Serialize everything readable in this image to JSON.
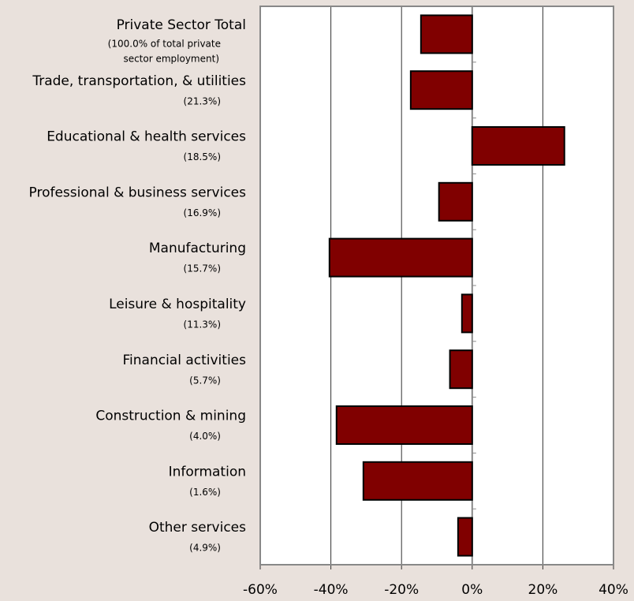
{
  "chart_data": {
    "type": "bar",
    "orientation": "horizontal",
    "categories": [
      "Private Sector Total",
      "Trade, transportation, & utilities",
      "Educational & health services",
      "Professional & business services",
      "Manufacturing",
      "Leisure & hospitality",
      "Financial activities",
      "Construction & mining",
      "Information",
      "Other services"
    ],
    "shares": [
      [
        "(100.0% of total private",
        "sector employment)"
      ],
      [
        "(21.3%)"
      ],
      [
        "(18.5%)"
      ],
      [
        "(16.9%)"
      ],
      [
        "(15.7%)"
      ],
      [
        "(11.3%)"
      ],
      [
        "(5.7%)"
      ],
      [
        "(4.0%)"
      ],
      [
        "(1.6%)"
      ],
      [
        "(4.9%)"
      ]
    ],
    "values": [
      -14.5,
      -17.4,
      26.1,
      -9.4,
      -40.4,
      -2.9,
      -6.3,
      -38.4,
      -30.8,
      -4.0
    ],
    "color": "#800000",
    "xlim": [
      -60,
      40
    ],
    "xticks": [
      {
        "value": -60,
        "label": "-60%"
      },
      {
        "value": -40,
        "label": "-40%"
      },
      {
        "value": -20,
        "label": "-20%"
      },
      {
        "value": 0,
        "label": "0%"
      },
      {
        "value": 20,
        "label": "20%"
      },
      {
        "value": 40,
        "label": "40%"
      }
    ],
    "grid": true
  }
}
